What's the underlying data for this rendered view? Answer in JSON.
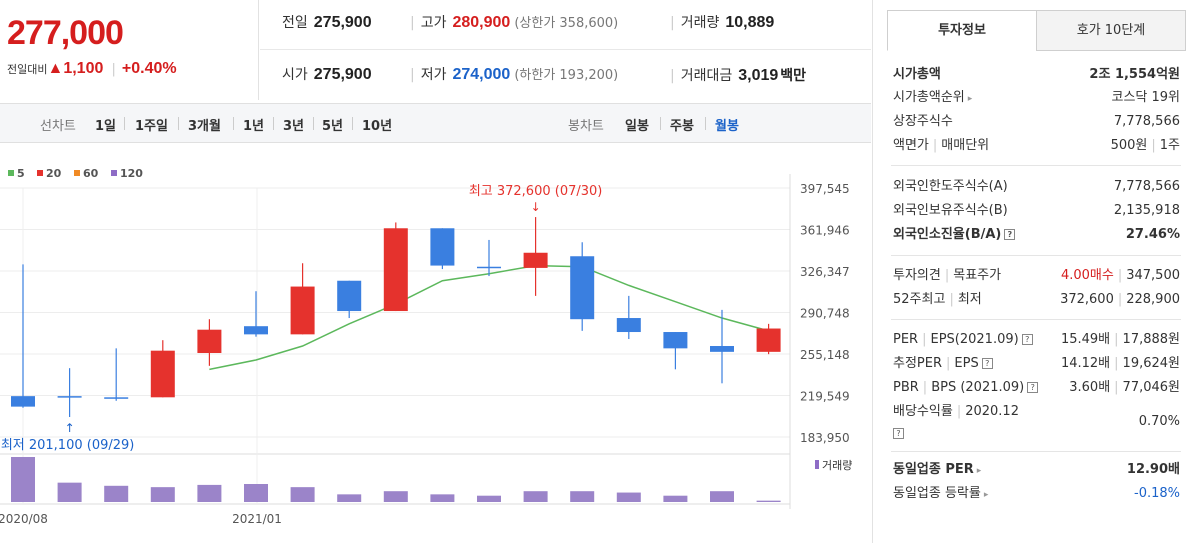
{
  "header": {
    "current_price": "277,000",
    "change_label": "전일대비",
    "change_arrow": "▲",
    "change_value": "1,100",
    "change_pct": "+0.40%",
    "prev_close_label": "전일",
    "prev_close": "275,900",
    "high_label": "고가",
    "high": "280,900",
    "upper_limit": "(상한가 358,600)",
    "volume_label": "거래량",
    "volume": "10,889",
    "open_label": "시가",
    "open": "275,900",
    "low_label": "저가",
    "low": "274,000",
    "lower_limit": "(하한가 193,200)",
    "amount_label": "거래대금",
    "amount": "3,019",
    "amount_unit": "백만"
  },
  "period_bar": {
    "line_chart_label": "선차트",
    "line_periods": [
      "1일",
      "1주일",
      "3개월",
      "1년",
      "3년",
      "5년",
      "10년"
    ],
    "candle_chart_label": "봉차트",
    "candle_periods": [
      "일봉",
      "주봉",
      "월봉"
    ],
    "selected_candle": "월봉"
  },
  "panel": {
    "tabs": [
      "투자정보",
      "호가 10단계"
    ],
    "rows": {
      "market_cap_label": "시가총액",
      "market_cap": "2조 1,554억원",
      "cap_rank_label": "시가총액순위",
      "cap_rank": "코스닥 19위",
      "shares_label": "상장주식수",
      "shares": "7,778,566",
      "par_label": "액면가",
      "unit_label": "매매단위",
      "par": "500원",
      "unit": "1주",
      "foreign_limit_label": "외국인한도주식수(A)",
      "foreign_limit": "7,778,566",
      "foreign_hold_label": "외국인보유주식수(B)",
      "foreign_hold": "2,135,918",
      "foreign_ratio_label": "외국인소진율(B/A)",
      "foreign_ratio": "27.46%",
      "opinion_label": "투자의견",
      "target_label": "목표주가",
      "opinion": "4.00매수",
      "target": "347,500",
      "w52_label": "52주최고",
      "w52_low_label": "최저",
      "w52_high": "372,600",
      "w52_low": "228,900",
      "per_label": "PER",
      "eps_label": "EPS(2021.09)",
      "per": "15.49배",
      "eps": "17,888원",
      "est_per_label": "추정PER",
      "est_eps_label": "EPS",
      "est_per": "14.12배",
      "est_eps": "19,624원",
      "pbr_label": "PBR",
      "bps_label": "BPS (2021.09)",
      "pbr": "3.60배",
      "bps": "77,046원",
      "div_label": "배당수익률",
      "div_date": "2020.12",
      "div": "0.70%",
      "ind_per_label": "동일업종 PER",
      "ind_per": "12.90배",
      "ind_rate_label": "동일업종 등락률",
      "ind_rate": "-0.18%"
    }
  },
  "chart_data": {
    "type": "candlestick",
    "title": "",
    "legend": [
      {
        "label": "5",
        "color": "#5cb85c"
      },
      {
        "label": "20",
        "color": "#e5322d"
      },
      {
        "label": "60",
        "color": "#f08a24"
      },
      {
        "label": "120",
        "color": "#8e6cc6"
      }
    ],
    "y_ticks": [
      183950,
      219549,
      255148,
      290748,
      326347,
      361946,
      397545
    ],
    "y_tick_labels": [
      "183,950",
      "219,549",
      "255,148",
      "290,748",
      "326,347",
      "361,946",
      "397,545"
    ],
    "ylim": [
      183950,
      397545
    ],
    "x_tick_labels": [
      {
        "index": 0,
        "label": "2020/08"
      },
      {
        "index": 5,
        "label": "2021/01"
      }
    ],
    "candles": [
      {
        "o": 219000,
        "h": 332000,
        "l": 209000,
        "c": 210000
      },
      {
        "o": 219000,
        "h": 243000,
        "l": 201100,
        "c": 219000
      },
      {
        "o": 218000,
        "h": 260000,
        "l": 215000,
        "c": 217000
      },
      {
        "o": 218000,
        "h": 267000,
        "l": 218000,
        "c": 258000
      },
      {
        "o": 256000,
        "h": 285000,
        "l": 245000,
        "c": 276000
      },
      {
        "o": 279000,
        "h": 309000,
        "l": 270000,
        "c": 272000
      },
      {
        "o": 272000,
        "h": 333000,
        "l": 272000,
        "c": 313000
      },
      {
        "o": 318000,
        "h": 318000,
        "l": 286000,
        "c": 292000
      },
      {
        "o": 292000,
        "h": 368000,
        "l": 292000,
        "c": 363000
      },
      {
        "o": 363000,
        "h": 363000,
        "l": 328000,
        "c": 331000
      },
      {
        "o": 330000,
        "h": 353000,
        "l": 322000,
        "c": 330000
      },
      {
        "o": 329000,
        "h": 372600,
        "l": 305000,
        "c": 342000
      },
      {
        "o": 339000,
        "h": 351000,
        "l": 275000,
        "c": 285000
      },
      {
        "o": 286000,
        "h": 305000,
        "l": 268000,
        "c": 274000
      },
      {
        "o": 274000,
        "h": 274000,
        "l": 242000,
        "c": 260000
      },
      {
        "o": 262000,
        "h": 293000,
        "l": 230000,
        "c": 257000
      },
      {
        "o": 257000,
        "h": 281000,
        "l": 255000,
        "c": 277000
      }
    ],
    "ma5": [
      null,
      null,
      null,
      null,
      242000,
      250000,
      262000,
      281000,
      298000,
      318000,
      324000,
      331000,
      330000,
      314000,
      300000,
      286000,
      275000
    ],
    "volume_label": "거래량",
    "volume": [
      100,
      43,
      36,
      33,
      38,
      40,
      33,
      17,
      24,
      17,
      14,
      24,
      24,
      21,
      14,
      24,
      3
    ],
    "high_annotation": "최고 372,600 (07/30)",
    "low_annotation": "최저 201,100 (09/29)",
    "up_color": "#e5322d",
    "down_color": "#3a7fe0"
  }
}
